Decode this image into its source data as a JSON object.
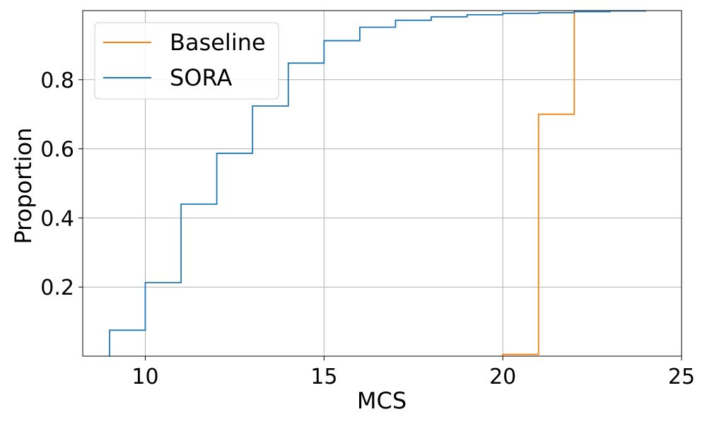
{
  "chart_data": {
    "type": "line",
    "subtype": "ecdf-step",
    "title": "",
    "xlabel": "MCS",
    "ylabel": "Proportion",
    "xlim": [
      8.25,
      25
    ],
    "ylim": [
      0,
      1
    ],
    "x_ticks": [
      10,
      15,
      20,
      25
    ],
    "x_tick_labels": [
      "10",
      "15",
      "20",
      "25"
    ],
    "y_ticks": [
      0.2,
      0.4,
      0.6,
      0.8
    ],
    "y_tick_labels": [
      "0.2",
      "0.4",
      "0.6",
      "0.8"
    ],
    "grid": true,
    "legend_position": "upper-left",
    "series": [
      {
        "name": "Baseline",
        "color": "#ff7f0e",
        "x": [
          20,
          21,
          22
        ],
        "y": [
          0.005,
          0.7,
          1.0
        ]
      },
      {
        "name": "SORA",
        "color": "#1f77b4",
        "x": [
          9,
          10,
          11,
          12,
          13,
          14,
          15,
          16,
          17,
          18,
          19,
          20,
          21,
          22,
          23,
          24
        ],
        "y": [
          0.075,
          0.213,
          0.44,
          0.587,
          0.724,
          0.848,
          0.913,
          0.952,
          0.972,
          0.982,
          0.988,
          0.992,
          0.994,
          0.997,
          0.999,
          1.0
        ]
      }
    ]
  }
}
